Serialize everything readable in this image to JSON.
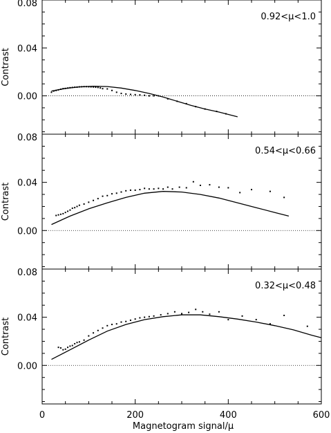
{
  "chart_data": {
    "type": "scatter",
    "xlabel": "Magnetogram signal/μ",
    "xlim": [
      0,
      600
    ],
    "x_ticks": [
      "0",
      "200",
      "400",
      "600"
    ],
    "shared_x_axis": true,
    "panels": [
      {
        "annotation": "0.92<μ<1.0",
        "ylabel": "Contrast",
        "ylim": [
          -0.032,
          0.08
        ],
        "y_ticks": [
          "0.00",
          "0.04",
          "0.08"
        ],
        "reference_line": {
          "y": 0,
          "style": "dotted"
        },
        "series": [
          {
            "kind": "points",
            "x": [
              20,
              25,
              30,
              35,
              40,
              45,
              50,
              55,
              60,
              65,
              70,
              75,
              80,
              85,
              90,
              95,
              100,
              105,
              110,
              115,
              120,
              125,
              130,
              140,
              150,
              160,
              170,
              180,
              190,
              200,
              210,
              220,
              230,
              240,
              250,
              270,
              290,
              310,
              330,
              350,
              375,
              395
            ],
            "y": [
              0.003,
              0.004,
              0.0045,
              0.005,
              0.0055,
              0.006,
              0.0062,
              0.0065,
              0.0068,
              0.007,
              0.0072,
              0.0073,
              0.0075,
              0.0076,
              0.0077,
              0.0077,
              0.0076,
              0.0075,
              0.0074,
              0.0072,
              0.007,
              0.0066,
              0.006,
              0.0058,
              0.0045,
              0.003,
              0.002,
              0.0015,
              0.0012,
              0.001,
              0.0008,
              0.0005,
              0.0,
              0.0,
              0.0,
              -0.0025,
              -0.0045,
              -0.0065,
              -0.009,
              -0.011,
              -0.013,
              -0.015
            ]
          },
          {
            "kind": "fit",
            "x": [
              20,
              50,
              80,
              110,
              140,
              170,
              200,
              230,
              260,
              290,
              320,
              350,
              380,
              420
            ],
            "y": [
              0.004,
              0.0062,
              0.0075,
              0.008,
              0.0078,
              0.0065,
              0.0045,
              0.002,
              -0.001,
              -0.0045,
              -0.008,
              -0.011,
              -0.0135,
              -0.0175
            ]
          }
        ]
      },
      {
        "annotation": "0.54<μ<0.66",
        "ylabel": "Contrast",
        "ylim": [
          -0.032,
          0.08
        ],
        "y_ticks": [
          "0.00",
          "0.04",
          "0.08"
        ],
        "reference_line": {
          "y": 0,
          "style": "dotted"
        },
        "series": [
          {
            "kind": "points",
            "x": [
              30,
              35,
              40,
              45,
              50,
              55,
              60,
              65,
              70,
              75,
              80,
              90,
              100,
              110,
              120,
              130,
              140,
              150,
              160,
              170,
              180,
              190,
              200,
              210,
              220,
              230,
              240,
              250,
              260,
              270,
              280,
              295,
              310,
              325,
              340,
              360,
              380,
              400,
              425,
              450,
              490,
              520
            ],
            "y": [
              0.0125,
              0.013,
              0.0135,
              0.014,
              0.015,
              0.016,
              0.017,
              0.0185,
              0.019,
              0.02,
              0.021,
              0.022,
              0.0235,
              0.025,
              0.0265,
              0.0285,
              0.029,
              0.0305,
              0.031,
              0.032,
              0.033,
              0.0335,
              0.0335,
              0.034,
              0.035,
              0.0345,
              0.0345,
              0.035,
              0.0345,
              0.036,
              0.0345,
              0.036,
              0.0355,
              0.0405,
              0.0375,
              0.038,
              0.036,
              0.0355,
              0.0315,
              0.034,
              0.0325,
              0.0275
            ]
          },
          {
            "kind": "fit",
            "x": [
              20,
              60,
              100,
              140,
              180,
              220,
              260,
              300,
              340,
              380,
              420,
              460,
              500,
              530
            ],
            "y": [
              0.005,
              0.012,
              0.018,
              0.023,
              0.0275,
              0.031,
              0.0325,
              0.032,
              0.03,
              0.027,
              0.023,
              0.019,
              0.015,
              0.012
            ]
          }
        ]
      },
      {
        "annotation": "0.32<μ<0.48",
        "ylabel": "Contrast",
        "ylim": [
          -0.032,
          0.08
        ],
        "y_ticks": [
          "0.00",
          "0.04",
          "0.08"
        ],
        "reference_line": {
          "y": 0,
          "style": "dotted"
        },
        "series": [
          {
            "kind": "points",
            "x": [
              35,
              40,
              45,
              50,
              55,
              60,
              65,
              70,
              75,
              80,
              90,
              100,
              110,
              120,
              130,
              140,
              150,
              160,
              170,
              180,
              190,
              200,
              210,
              220,
              230,
              240,
              255,
              270,
              285,
              300,
              315,
              330,
              345,
              360,
              380,
              400,
              430,
              460,
              490,
              520,
              570
            ],
            "y": [
              0.015,
              0.0145,
              0.013,
              0.0135,
              0.015,
              0.016,
              0.0165,
              0.018,
              0.019,
              0.0195,
              0.021,
              0.0245,
              0.027,
              0.029,
              0.031,
              0.033,
              0.034,
              0.0345,
              0.036,
              0.0365,
              0.0375,
              0.0385,
              0.0395,
              0.04,
              0.0405,
              0.041,
              0.042,
              0.043,
              0.0445,
              0.043,
              0.044,
              0.0465,
              0.0445,
              0.0425,
              0.0445,
              0.038,
              0.041,
              0.038,
              0.0345,
              0.0415,
              0.0325
            ]
          },
          {
            "kind": "fit",
            "x": [
              20,
              60,
              100,
              140,
              180,
              220,
              260,
              300,
              340,
              380,
              420,
              460,
              500,
              540,
              580,
              600
            ],
            "y": [
              0.005,
              0.013,
              0.021,
              0.0285,
              0.034,
              0.038,
              0.0405,
              0.042,
              0.042,
              0.0405,
              0.0385,
              0.036,
              0.033,
              0.0295,
              0.025,
              0.023
            ]
          }
        ]
      }
    ]
  }
}
